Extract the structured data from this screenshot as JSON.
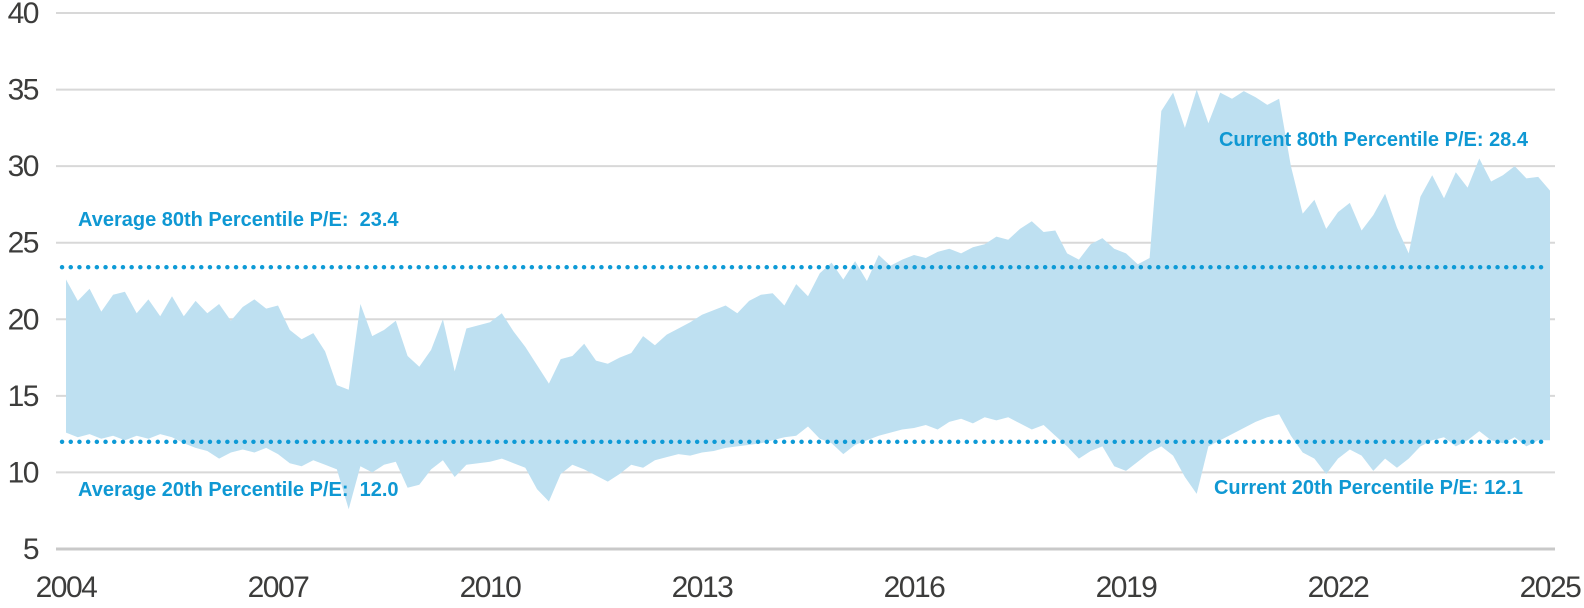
{
  "chart_data": {
    "type": "area",
    "title": "",
    "xlabel": "",
    "ylabel": "",
    "xlim": [
      2004,
      2025
    ],
    "ylim": [
      5,
      40
    ],
    "grid": true,
    "legend": "none",
    "xticks": [
      2004,
      2007,
      2010,
      2013,
      2016,
      2019,
      2022,
      2025
    ],
    "yticks": [
      40,
      35,
      30,
      25,
      20,
      15,
      10,
      5
    ],
    "x_start": 2004,
    "x_end": 2025,
    "x_step_years": 0.1667,
    "points": 127,
    "series": [
      {
        "name": "80th Percentile P/E (upper band edge)",
        "values": [
          22.6,
          21.2,
          22.0,
          20.5,
          21.6,
          21.8,
          20.4,
          21.3,
          20.2,
          21.5,
          20.2,
          21.2,
          20.4,
          21.0,
          19.9,
          20.8,
          21.3,
          20.7,
          20.9,
          19.3,
          18.7,
          19.1,
          17.9,
          15.7,
          15.4,
          21.0,
          18.9,
          19.3,
          19.9,
          17.6,
          16.9,
          18.0,
          20.0,
          16.6,
          19.4,
          19.6,
          19.8,
          20.4,
          19.2,
          18.2,
          17.0,
          15.8,
          17.4,
          17.6,
          18.4,
          17.3,
          17.1,
          17.5,
          17.8,
          18.9,
          18.3,
          19.0,
          19.4,
          19.8,
          20.3,
          20.6,
          20.9,
          20.4,
          21.2,
          21.6,
          21.7,
          20.9,
          22.3,
          21.5,
          23.0,
          23.7,
          22.6,
          23.8,
          22.5,
          24.2,
          23.5,
          23.9,
          24.2,
          24.0,
          24.4,
          24.6,
          24.3,
          24.7,
          24.9,
          25.4,
          25.2,
          25.9,
          26.4,
          25.7,
          25.8,
          24.3,
          23.9,
          24.9,
          25.3,
          24.6,
          24.3,
          23.6,
          24.0,
          33.6,
          34.8,
          32.5,
          35.0,
          32.8,
          34.8,
          34.4,
          34.9,
          34.5,
          34.0,
          34.4,
          30.0,
          26.9,
          27.8,
          25.9,
          27.0,
          27.6,
          25.8,
          26.8,
          28.2,
          26.0,
          24.3,
          28.0,
          29.4,
          27.9,
          29.6,
          28.6,
          30.5,
          29.0,
          29.4,
          30.0,
          29.2,
          29.3,
          28.4
        ]
      },
      {
        "name": "20th Percentile P/E (lower band edge)",
        "values": [
          12.6,
          12.3,
          12.5,
          12.2,
          12.4,
          12.1,
          12.4,
          12.2,
          12.5,
          12.3,
          11.9,
          11.6,
          11.4,
          10.9,
          11.3,
          11.5,
          11.3,
          11.6,
          11.2,
          10.6,
          10.4,
          10.8,
          10.5,
          10.2,
          7.6,
          10.4,
          10.0,
          10.5,
          10.7,
          9.0,
          9.2,
          10.2,
          10.8,
          9.7,
          10.5,
          10.6,
          10.7,
          10.9,
          10.6,
          10.3,
          8.9,
          8.1,
          9.9,
          10.5,
          10.2,
          9.8,
          9.4,
          9.9,
          10.5,
          10.3,
          10.8,
          11.0,
          11.2,
          11.1,
          11.3,
          11.4,
          11.6,
          11.7,
          11.8,
          11.9,
          12.1,
          12.3,
          12.4,
          13.0,
          12.2,
          11.9,
          11.2,
          11.8,
          12.1,
          12.4,
          12.6,
          12.8,
          12.9,
          13.1,
          12.8,
          13.3,
          13.5,
          13.2,
          13.6,
          13.4,
          13.6,
          13.2,
          12.8,
          13.1,
          12.4,
          11.7,
          10.9,
          11.4,
          11.7,
          10.4,
          10.1,
          10.7,
          11.3,
          11.7,
          11.1,
          9.7,
          8.6,
          11.7,
          12.1,
          12.5,
          12.9,
          13.3,
          13.6,
          13.8,
          12.4,
          11.3,
          10.9,
          9.9,
          10.9,
          11.5,
          11.1,
          10.1,
          10.9,
          10.3,
          10.9,
          11.7,
          12.1,
          12.3,
          11.7,
          12.1,
          12.7,
          12.1,
          11.9,
          12.3,
          11.7,
          12.1,
          12.1
        ]
      }
    ],
    "reference_lines": [
      {
        "name": "Average 80th Percentile P/E",
        "value": 23.4
      },
      {
        "name": "Average 20th Percentile P/E",
        "value": 12.0
      }
    ],
    "current_values": {
      "80th_percentile_pe": 28.4,
      "20th_percentile_pe": 12.1
    },
    "annotations": {
      "avg80": "Average 80th Percentile P/E:  23.4",
      "cur80": "Current 80th Percentile P/E: 28.4",
      "avg20": "Average 20th Percentile P/E:  12.0",
      "cur20": "Current 20th Percentile P/E: 12.1"
    },
    "colors": {
      "band_fill": "#bee0f1",
      "accent_blue": "#0f98d3",
      "dotted_line": "#0e9ad6",
      "gridline": "#d8d8d8",
      "tick_text": "#3c3c3b"
    }
  }
}
